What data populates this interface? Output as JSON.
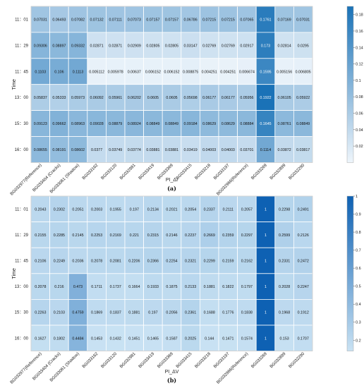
{
  "chart_data": [
    {
      "type": "heatmap",
      "ylabel": "Time",
      "xlabel": "PI_ΔI",
      "caption": "(a)",
      "rows": [
        "11：01",
        "11：29",
        "11：45",
        "13：00",
        "15：30",
        "16：00"
      ],
      "columns": [
        "BG032977(Reference)",
        "BG033404 (Cracks)",
        "BG033061 (Shadow)",
        "BG033162",
        "BG033120",
        "BG032981",
        "BG033419",
        "BG033369",
        "BG033415",
        "BG033218",
        "BG033197",
        "BG032966(Reference)",
        "BG033269",
        "BG032899",
        "BG032290"
      ],
      "values": [
        [
          "0.07031",
          "0.06493",
          "0.07082",
          "0.07132",
          "0.07111",
          "0.07073",
          "0.07157",
          "0.07157",
          "0.06786",
          "0.07215",
          "0.07215",
          "0.07065",
          "0.1761",
          "0.07169",
          "0.07031"
        ],
        [
          "0.09306",
          "0.08897",
          "0.09332",
          "0.02871",
          "0.02871",
          "0.02909",
          "0.02805",
          "0.02805",
          "0.03147",
          "0.02769",
          "0.02769",
          "0.02917",
          "0.173",
          "0.02814",
          "0.0295"
        ],
        [
          "0.1103",
          "0.106",
          "0.1113",
          "0.005112",
          "0.005978",
          "0.00637",
          "0.006152",
          "0.006152",
          "0.008875",
          "0.004251",
          "0.004251",
          "0.006674",
          "0.1595",
          "0.005156",
          "0.006805"
        ],
        [
          "0.05837",
          "0.05333",
          "0.05973",
          "0.06092",
          "0.05961",
          "0.06202",
          "0.0605",
          "0.0605",
          "0.05698",
          "0.06177",
          "0.06177",
          "0.05956",
          "0.1922",
          "0.06105",
          "0.05922"
        ],
        [
          "0.09123",
          "0.09662",
          "0.08963",
          "0.09028",
          "0.08879",
          "0.08924",
          "0.08849",
          "0.08849",
          "0.09184",
          "0.08629",
          "0.08629",
          "0.08884",
          "0.1645",
          "0.08761",
          "0.08849"
        ],
        [
          "0.08655",
          "0.08191",
          "0.08602",
          "0.0377",
          "0.03749",
          "0.03774",
          "0.03881",
          "0.03881",
          "0.03419",
          "0.04003",
          "0.04003",
          "0.03701",
          "0.1114",
          "0.03872",
          "0.03817"
        ]
      ],
      "colorbar": {
        "min": 0,
        "max": 0.19,
        "ticks": [
          "0.02",
          "0.04",
          "0.06",
          "0.08",
          "0.1",
          "0.12",
          "0.14",
          "0.16",
          "0.18"
        ],
        "tick_values": [
          0.02,
          0.04,
          0.06,
          0.08,
          0.1,
          0.12,
          0.14,
          0.16,
          0.18
        ]
      },
      "colors": {
        "low": "#eef5fb",
        "high": "#1a72b7"
      }
    },
    {
      "type": "heatmap",
      "ylabel": "Time",
      "xlabel": "PI_ΔV",
      "caption": "(b)",
      "rows": [
        "11：01",
        "11：29",
        "11：45",
        "13：00",
        "15：30",
        "16：00"
      ],
      "columns": [
        "BG032977(Reference)",
        "BG033404 (Cracks)",
        "BG033061 (Shadow)",
        "BG033162",
        "BG033120",
        "BG032981",
        "BG033419",
        "BG033369",
        "BG033415",
        "BG033218",
        "BG033197",
        "BG032966(Reference)",
        "BG033269",
        "BG032899",
        "BG032290"
      ],
      "values": [
        [
          "0.2043",
          "0.2302",
          "0.2051",
          "0.2003",
          "0.1955",
          "0.197",
          "0.2134",
          "0.2021",
          "0.2054",
          "0.2337",
          "0.2111",
          "0.2057",
          "1",
          "0.2298",
          "0.2491"
        ],
        [
          "0.2155",
          "0.2285",
          "0.2145",
          "0.2253",
          "0.2169",
          "0.221",
          "0.2315",
          "0.2146",
          "0.2237",
          "0.2669",
          "0.2359",
          "0.2297",
          "1",
          "0.2599",
          "0.2126"
        ],
        [
          "0.2106",
          "0.2249",
          "0.2036",
          "0.2078",
          "0.2081",
          "0.2206",
          "0.2366",
          "0.2254",
          "0.2321",
          "0.2299",
          "0.2159",
          "0.2162",
          "1",
          "0.2331",
          "0.2472"
        ],
        [
          "0.2078",
          "0.216",
          "0.473",
          "0.1711",
          "0.1737",
          "0.1664",
          "0.1933",
          "0.1875",
          "0.2133",
          "0.1881",
          "0.1822",
          "0.1797",
          "1",
          "0.2028",
          "0.2247"
        ],
        [
          "0.2263",
          "0.2103",
          "0.4759",
          "0.1869",
          "0.1837",
          "0.1881",
          "0.197",
          "0.2056",
          "0.2361",
          "0.1688",
          "0.1776",
          "0.1838",
          "1",
          "0.1968",
          "0.1912"
        ],
        [
          "0.1627",
          "0.1802",
          "0.4484",
          "0.1453",
          "0.1432",
          "0.1451",
          "0.1465",
          "0.1587",
          "0.2025",
          "0.144",
          "0.1471",
          "0.1574",
          "1",
          "0.153",
          "0.1707"
        ]
      ],
      "colorbar": {
        "min": 0.14,
        "max": 1,
        "ticks": [
          "0.2",
          "0.3",
          "0.4",
          "0.5",
          "0.6",
          "0.7",
          "0.8",
          "0.9",
          "1"
        ],
        "tick_values": [
          0.2,
          0.3,
          0.4,
          0.5,
          0.6,
          0.7,
          0.8,
          0.9,
          1
        ]
      },
      "colors": {
        "low": "#c9e2f3",
        "high": "#0e61b3"
      }
    }
  ]
}
